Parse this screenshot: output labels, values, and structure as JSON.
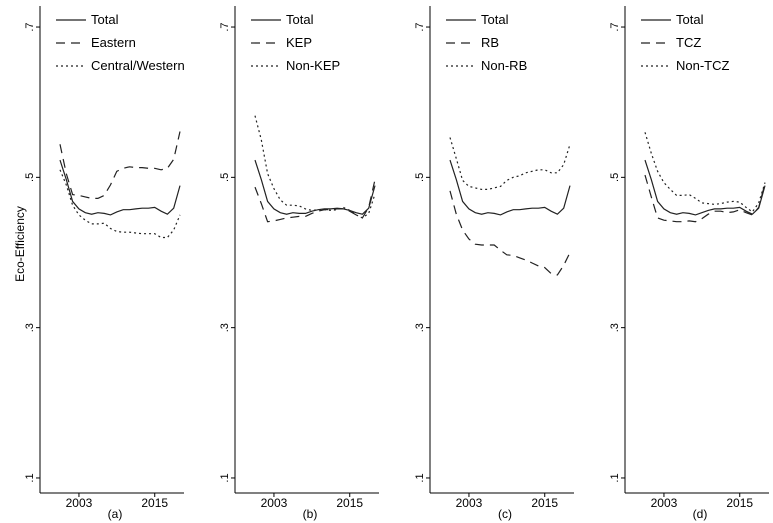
{
  "figure": {
    "ylabel": "Eco-Efficiency"
  },
  "styles": {
    "solid": {
      "color": "#222222",
      "dash": ""
    },
    "dashed": {
      "color": "#222222",
      "dash": "9,6"
    },
    "dotted": {
      "color": "#222222",
      "dash": "2,3"
    }
  },
  "chart_data": [
    {
      "type": "line",
      "panel_label": "(a)",
      "x": [
        2000,
        2001,
        2002,
        2003,
        2004,
        2005,
        2006,
        2007,
        2008,
        2009,
        2010,
        2011,
        2012,
        2013,
        2014,
        2015,
        2016,
        2017,
        2018,
        2019
      ],
      "xticks": [
        "2003",
        "2015"
      ],
      "xtick_values": [
        2003,
        2015
      ],
      "yticks": [
        ".1",
        ".3",
        ".5",
        ".7"
      ],
      "ytick_values": [
        0.1,
        0.3,
        0.5,
        0.7
      ],
      "ylim": [
        0.08,
        0.72
      ],
      "legend": "top-left",
      "series": [
        {
          "name": "Total",
          "style": "solid",
          "values": [
            0.523,
            0.497,
            0.468,
            0.458,
            0.453,
            0.451,
            0.453,
            0.452,
            0.45,
            0.454,
            0.457,
            0.457,
            0.458,
            0.459,
            0.459,
            0.46,
            0.455,
            0.451,
            0.459,
            0.489
          ]
        },
        {
          "name": "Eastern",
          "style": "dashed",
          "values": [
            0.544,
            0.505,
            0.477,
            0.476,
            0.474,
            0.472,
            0.472,
            0.476,
            0.49,
            0.508,
            0.512,
            0.514,
            0.513,
            0.513,
            0.512,
            0.512,
            0.51,
            0.512,
            0.524,
            0.561
          ]
        },
        {
          "name": "Central/Western",
          "style": "dotted",
          "values": [
            0.51,
            0.49,
            0.463,
            0.45,
            0.443,
            0.438,
            0.438,
            0.439,
            0.432,
            0.428,
            0.427,
            0.427,
            0.426,
            0.425,
            0.425,
            0.425,
            0.42,
            0.42,
            0.43,
            0.45
          ]
        }
      ]
    },
    {
      "type": "line",
      "panel_label": "(b)",
      "x": [
        2000,
        2001,
        2002,
        2003,
        2004,
        2005,
        2006,
        2007,
        2008,
        2009,
        2010,
        2011,
        2012,
        2013,
        2014,
        2015,
        2016,
        2017,
        2018,
        2019
      ],
      "xticks": [
        "2003",
        "2015"
      ],
      "xtick_values": [
        2003,
        2015
      ],
      "yticks": [
        ".1",
        ".3",
        ".5",
        ".7"
      ],
      "ytick_values": [
        0.1,
        0.3,
        0.5,
        0.7
      ],
      "ylim": [
        0.08,
        0.72
      ],
      "legend": "top-right",
      "series": [
        {
          "name": "Total",
          "style": "solid",
          "values": [
            0.523,
            0.497,
            0.468,
            0.458,
            0.453,
            0.451,
            0.453,
            0.452,
            0.452,
            0.455,
            0.457,
            0.458,
            0.458,
            0.459,
            0.458,
            0.456,
            0.453,
            0.451,
            0.459,
            0.489
          ]
        },
        {
          "name": "KEP",
          "style": "dashed",
          "values": [
            0.487,
            0.465,
            0.441,
            0.442,
            0.444,
            0.446,
            0.447,
            0.448,
            0.448,
            0.452,
            0.455,
            0.457,
            0.457,
            0.458,
            0.458,
            0.455,
            0.45,
            0.446,
            0.46,
            0.497
          ]
        },
        {
          "name": "Non-KEP",
          "style": "dotted",
          "values": [
            0.582,
            0.55,
            0.505,
            0.485,
            0.47,
            0.463,
            0.463,
            0.462,
            0.458,
            0.456,
            0.457,
            0.457,
            0.456,
            0.457,
            0.46,
            0.456,
            0.45,
            0.446,
            0.452,
            0.478
          ]
        }
      ]
    },
    {
      "type": "line",
      "panel_label": "(c)",
      "x": [
        2000,
        2001,
        2002,
        2003,
        2004,
        2005,
        2006,
        2007,
        2008,
        2009,
        2010,
        2011,
        2012,
        2013,
        2014,
        2015,
        2016,
        2017,
        2018,
        2019
      ],
      "xticks": [
        "2003",
        "2015"
      ],
      "xtick_values": [
        2003,
        2015
      ],
      "yticks": [
        ".1",
        ".3",
        ".5",
        ".7"
      ],
      "ytick_values": [
        0.1,
        0.3,
        0.5,
        0.7
      ],
      "ylim": [
        0.08,
        0.72
      ],
      "legend": "top-right",
      "series": [
        {
          "name": "Total",
          "style": "solid",
          "values": [
            0.523,
            0.497,
            0.468,
            0.458,
            0.453,
            0.451,
            0.453,
            0.452,
            0.45,
            0.454,
            0.457,
            0.457,
            0.458,
            0.459,
            0.459,
            0.46,
            0.455,
            0.451,
            0.459,
            0.489
          ]
        },
        {
          "name": "RB",
          "style": "dashed",
          "values": [
            0.482,
            0.451,
            0.43,
            0.418,
            0.411,
            0.41,
            0.41,
            0.41,
            0.403,
            0.397,
            0.396,
            0.393,
            0.39,
            0.386,
            0.382,
            0.38,
            0.372,
            0.37,
            0.383,
            0.4
          ]
        },
        {
          "name": "Non-RB",
          "style": "dotted",
          "values": [
            0.553,
            0.525,
            0.496,
            0.488,
            0.486,
            0.484,
            0.484,
            0.486,
            0.488,
            0.496,
            0.5,
            0.502,
            0.506,
            0.508,
            0.51,
            0.51,
            0.506,
            0.506,
            0.517,
            0.544
          ]
        }
      ]
    },
    {
      "type": "line",
      "panel_label": "(d)",
      "x": [
        2000,
        2001,
        2002,
        2003,
        2004,
        2005,
        2006,
        2007,
        2008,
        2009,
        2010,
        2011,
        2012,
        2013,
        2014,
        2015,
        2016,
        2017,
        2018,
        2019
      ],
      "xticks": [
        "2003",
        "2015"
      ],
      "xtick_values": [
        2003,
        2015
      ],
      "yticks": [
        ".1",
        ".3",
        ".5",
        ".7"
      ],
      "ytick_values": [
        0.1,
        0.3,
        0.5,
        0.7
      ],
      "ylim": [
        0.08,
        0.72
      ],
      "legend": "top-right",
      "series": [
        {
          "name": "Total",
          "style": "solid",
          "values": [
            0.523,
            0.497,
            0.468,
            0.458,
            0.453,
            0.451,
            0.453,
            0.452,
            0.45,
            0.453,
            0.456,
            0.458,
            0.458,
            0.459,
            0.459,
            0.46,
            0.455,
            0.451,
            0.459,
            0.489
          ]
        },
        {
          "name": "TCZ",
          "style": "dashed",
          "values": [
            0.503,
            0.474,
            0.446,
            0.443,
            0.442,
            0.441,
            0.441,
            0.442,
            0.441,
            0.445,
            0.451,
            0.455,
            0.455,
            0.453,
            0.454,
            0.457,
            0.453,
            0.45,
            0.46,
            0.492
          ]
        },
        {
          "name": "Non-TCZ",
          "style": "dotted",
          "values": [
            0.56,
            0.532,
            0.508,
            0.493,
            0.484,
            0.476,
            0.476,
            0.477,
            0.472,
            0.466,
            0.465,
            0.464,
            0.465,
            0.467,
            0.468,
            0.467,
            0.46,
            0.454,
            0.466,
            0.493
          ]
        }
      ]
    }
  ]
}
